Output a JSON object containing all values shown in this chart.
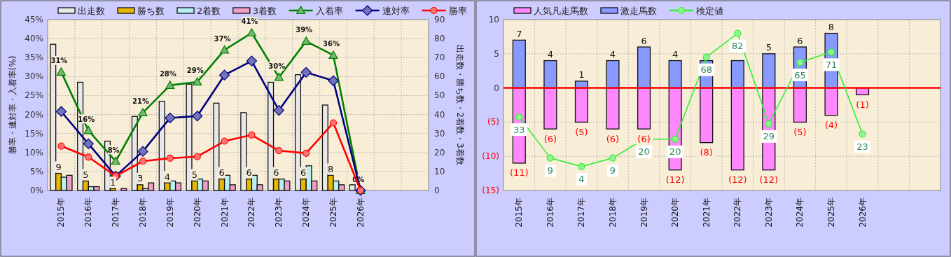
{
  "chart_data": [
    {
      "type": "bar",
      "categories": [
        "2015年",
        "2016年",
        "2017年",
        "2018年",
        "2019年",
        "2020年",
        "2021年",
        "2022年",
        "2023年",
        "2024年",
        "2025年",
        "2026年",
        null,
        null
      ],
      "ylabel": "勝率・連対率・入着率(%)",
      "y2label": "出走数・勝ち数・2着数・3着数",
      "series": [
        {
          "name": "出走数",
          "color": "#e8e8e8",
          "axis": "y2",
          "values": [
            77,
            57,
            26,
            39,
            47,
            56,
            46,
            41,
            57,
            61,
            45,
            3,
            null,
            null
          ]
        },
        {
          "name": "勝ち数",
          "color": "#e6b800",
          "axis": "y2",
          "values": [
            9,
            5,
            1,
            3,
            4,
            5,
            6,
            6,
            6,
            6,
            8,
            0,
            null,
            null
          ],
          "value_labels": [
            "9",
            "5",
            "1",
            "3",
            "4",
            "5",
            "6",
            "6",
            "6",
            "6",
            "8",
            null,
            null,
            null
          ]
        },
        {
          "name": "2着数",
          "color": "#b8f0f0",
          "axis": "y2",
          "values": [
            7,
            2,
            0,
            1,
            5,
            6,
            8,
            8,
            6,
            13,
            5,
            0,
            null,
            null
          ]
        },
        {
          "name": "3着数",
          "color": "#f0a0c8",
          "axis": "y2",
          "values": [
            8,
            2,
            1,
            4,
            4,
            5,
            3,
            3,
            5,
            5,
            3,
            0,
            null,
            null
          ]
        },
        {
          "name": "入着率",
          "type": "line",
          "color": "#008000",
          "marker": "triangle",
          "values": [
            31.2,
            15.8,
            7.7,
            20.5,
            27.7,
            28.6,
            37.0,
            41.5,
            29.8,
            39.3,
            35.6,
            0,
            null,
            null
          ],
          "value_labels": [
            "31%",
            "16%",
            "8%",
            "21%",
            "28%",
            "29%",
            "37%",
            "41%",
            "30%",
            "39%",
            "36%",
            "0%",
            null,
            null
          ]
        },
        {
          "name": "連対率",
          "type": "line",
          "color": "#000080",
          "marker": "diamond",
          "values": [
            20.8,
            12.3,
            3.8,
            10.3,
            19.1,
            19.6,
            30.4,
            34.1,
            21.1,
            31.1,
            28.9,
            0,
            null,
            null
          ]
        },
        {
          "name": "勝率",
          "type": "line",
          "color": "#ff0000",
          "marker": "circle",
          "values": [
            11.7,
            8.8,
            3.8,
            7.7,
            8.5,
            8.9,
            13.0,
            14.6,
            10.5,
            9.8,
            17.8,
            0,
            null,
            null
          ]
        }
      ],
      "ylim": [
        0,
        45
      ],
      "yticks": [
        {
          "value": 0,
          "label": "0%"
        },
        {
          "value": 5,
          "label": "5%"
        },
        {
          "value": 10,
          "label": "10%"
        },
        {
          "value": 15,
          "label": "15%"
        },
        {
          "value": 20,
          "label": "20%"
        },
        {
          "value": 25,
          "label": "25%"
        },
        {
          "value": 30,
          "label": "30%"
        },
        {
          "value": 35,
          "label": "35%"
        },
        {
          "value": 40,
          "label": "40%"
        },
        {
          "value": 45,
          "label": "45%"
        }
      ],
      "y2lim": [
        0,
        90
      ],
      "y2ticks": [
        0,
        10,
        20,
        30,
        40,
        50,
        60,
        70,
        80,
        90
      ],
      "grid": true,
      "legend": "top"
    },
    {
      "type": "bar",
      "stacked": true,
      "categories": [
        "2015年",
        "2016年",
        "2017年",
        "2018年",
        "2019年",
        "2020年",
        "2021年",
        "2022年",
        "2023年",
        "2024年",
        "2025年",
        "2026年",
        null,
        null
      ],
      "series": [
        {
          "name": "人気凡走馬数",
          "color": "#ff88ff",
          "values": [
            -11,
            -6,
            -5,
            -6,
            -6,
            -12,
            -8,
            -12,
            -12,
            -5,
            -4,
            -1,
            null,
            null
          ],
          "value_labels": [
            "(11)",
            "(6)",
            "(5)",
            "(6)",
            "(6)",
            "(12)",
            "(8)",
            "(12)",
            "(12)",
            "(5)",
            "(4)",
            "(1)",
            null,
            null
          ]
        },
        {
          "name": "激走馬数",
          "color": "#8899ff",
          "values": [
            7,
            4,
            1,
            4,
            6,
            4,
            4,
            4,
            5,
            6,
            8,
            0,
            null,
            null
          ],
          "value_labels": [
            "7",
            "4",
            "1",
            "4",
            "6",
            "4",
            null,
            null,
            "5",
            "6",
            "8",
            null,
            null,
            null
          ]
        },
        {
          "name": "検定値",
          "type": "line",
          "color": "#33ee33",
          "marker": "circle",
          "axis": "y2",
          "values": [
            33,
            9,
            4,
            9,
            20,
            20,
            68,
            82,
            29,
            65,
            71,
            23,
            null,
            null
          ],
          "value_labels": [
            "33",
            "9",
            "4",
            "9",
            "20",
            "20",
            "68",
            "82",
            "29",
            "65",
            "71",
            "23",
            null,
            null
          ]
        }
      ],
      "ylim": [
        -15,
        10
      ],
      "yticks": [
        {
          "value": 10,
          "label": "10"
        },
        {
          "value": 5,
          "label": "5"
        },
        {
          "value": 0,
          "label": "0"
        },
        {
          "value": -5,
          "label": "(5)"
        },
        {
          "value": -10,
          "label": "(10)"
        },
        {
          "value": -15,
          "label": "(15)"
        }
      ],
      "y2lim": [
        -10,
        90
      ],
      "ref_lines": [
        {
          "axis": "y",
          "value": 0,
          "color": "#ff0000"
        }
      ],
      "grid": true,
      "legend": "top"
    }
  ]
}
